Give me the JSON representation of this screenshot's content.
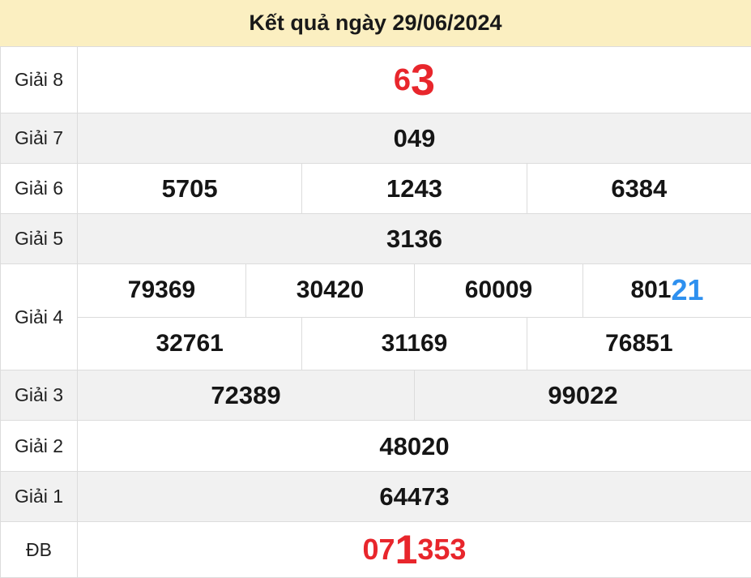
{
  "header": {
    "title": "Kết quả ngày 29/06/2024"
  },
  "colors": {
    "header_bg": "#fbefc1",
    "stripe_bg": "#f1f1f1",
    "border": "#dcdcdc",
    "number_red": "#e8262c",
    "number_blue": "#2e90ef",
    "number_black": "#151515"
  },
  "rows": {
    "g8": {
      "label": "Giải 8",
      "digits_small": "6",
      "digits_large": "3"
    },
    "g7": {
      "label": "Giải 7",
      "num": "049"
    },
    "g6": {
      "label": "Giải 6",
      "nums": [
        "5705",
        "1243",
        "6384"
      ]
    },
    "g5": {
      "label": "Giải 5",
      "num": "3136"
    },
    "g4": {
      "label": "Giải 4",
      "row1": [
        "79369",
        "30420",
        "60009"
      ],
      "row1_last_prefix": "801",
      "row1_last_highlight": "21",
      "row2": [
        "32761",
        "31169",
        "76851"
      ]
    },
    "g3": {
      "label": "Giải 3",
      "nums": [
        "72389",
        "99022"
      ]
    },
    "g2": {
      "label": "Giải 2",
      "num": "48020"
    },
    "g1": {
      "label": "Giải 1",
      "num": "64473"
    },
    "db": {
      "label": "ĐB",
      "prefix": "07",
      "highlight": "1",
      "suffix": "353"
    }
  }
}
